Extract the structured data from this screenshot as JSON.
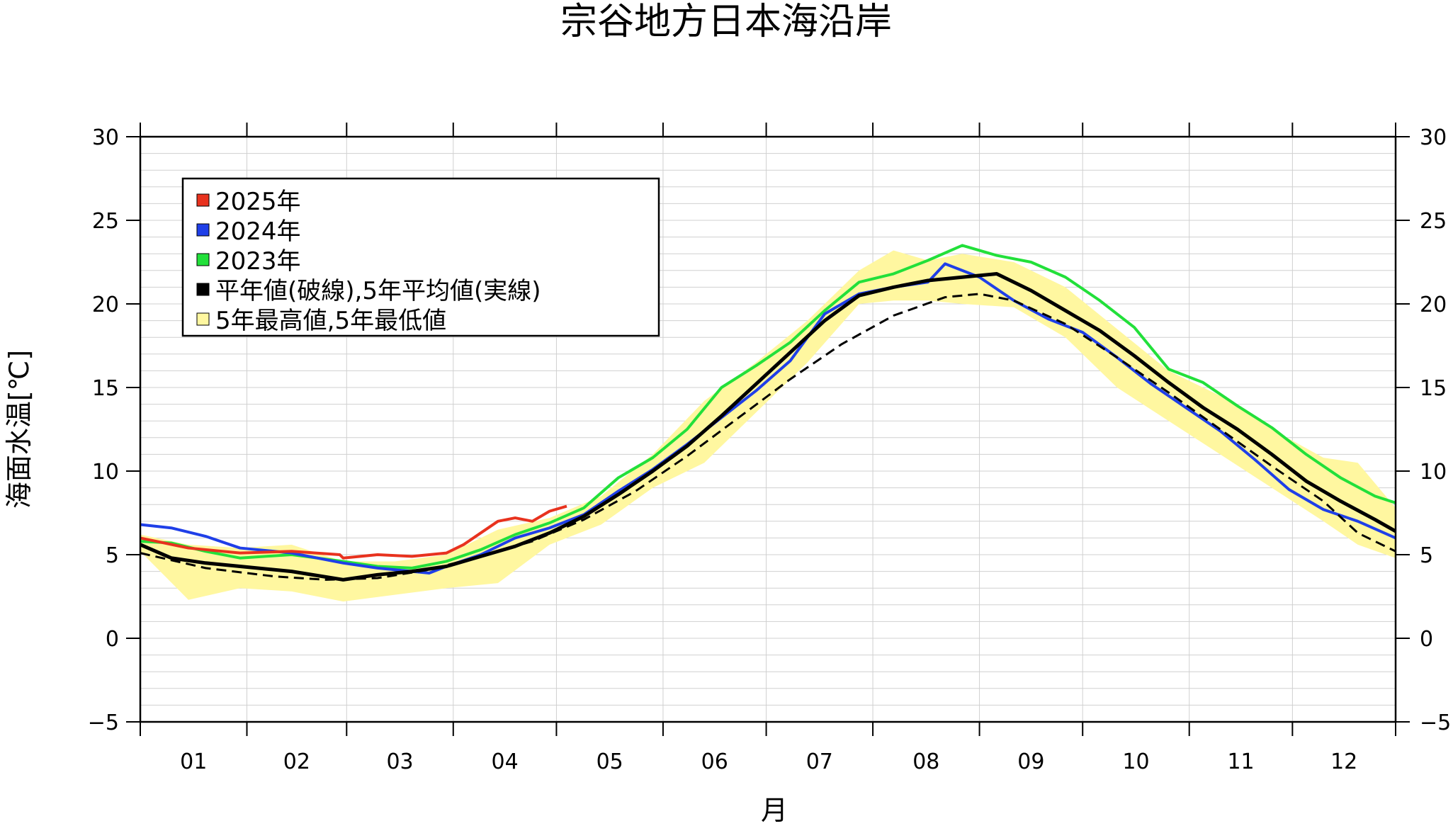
{
  "chart_data": {
    "type": "line",
    "title": "宗谷地方日本海沿岸",
    "xlabel": "月",
    "ylabel": "海面水温[℃]",
    "x_unit": "day_of_year",
    "xlim": [
      1,
      366
    ],
    "ylim": [
      -5,
      30
    ],
    "y_ticks": [
      30,
      25,
      20,
      15,
      10,
      5,
      0,
      -5
    ],
    "y_tick_labels": [
      "30",
      "25",
      "20",
      "15",
      "10",
      "5",
      "0",
      "−5"
    ],
    "month_labels": [
      "01",
      "02",
      "03",
      "04",
      "05",
      "06",
      "07",
      "08",
      "09",
      "10",
      "11",
      "12"
    ],
    "grid": true,
    "legend_position": "top-left",
    "legend": [
      {
        "label": "2025年",
        "color": "#e8321e"
      },
      {
        "label": "2024年",
        "color": "#1f3fe8"
      },
      {
        "label": "2023年",
        "color": "#22e03a"
      },
      {
        "label": "平年値(破線),5年平均値(実線)",
        "color": "#000000"
      },
      {
        "label": "5年最高値,5年最低値",
        "color": "#fff7a0"
      }
    ],
    "series": [
      {
        "name": "2025年",
        "color": "#e8321e",
        "x": [
          1,
          15,
          30,
          45,
          59,
          60,
          70,
          80,
          90,
          95,
          100,
          105,
          110,
          115,
          120,
          125
        ],
        "y": [
          6.0,
          5.4,
          5.1,
          5.2,
          5.0,
          4.8,
          5.0,
          4.9,
          5.1,
          5.6,
          6.3,
          7.0,
          7.2,
          7.0,
          7.6,
          7.9
        ]
      },
      {
        "name": "2024年",
        "color": "#1f3fe8",
        "x": [
          1,
          10,
          20,
          30,
          45,
          60,
          70,
          80,
          85,
          90,
          100,
          110,
          120,
          130,
          140,
          150,
          160,
          170,
          180,
          190,
          200,
          210,
          220,
          230,
          235,
          245,
          255,
          265,
          275,
          285,
          295,
          305,
          315,
          325,
          335,
          345,
          355,
          366
        ],
        "y": [
          6.8,
          6.6,
          6.1,
          5.4,
          5.1,
          4.5,
          4.2,
          4.0,
          3.9,
          4.3,
          5.0,
          6.0,
          6.6,
          7.4,
          8.8,
          10.1,
          11.6,
          13.2,
          14.8,
          16.6,
          19.4,
          20.6,
          21.0,
          21.3,
          22.4,
          21.6,
          20.2,
          19.1,
          18.3,
          16.8,
          15.2,
          13.8,
          12.4,
          10.7,
          8.9,
          7.7,
          7.0,
          6.0
        ]
      },
      {
        "name": "2023年",
        "color": "#22e03a",
        "x": [
          1,
          10,
          20,
          30,
          45,
          60,
          70,
          80,
          90,
          100,
          110,
          120,
          130,
          140,
          150,
          160,
          170,
          180,
          190,
          200,
          210,
          220,
          230,
          240,
          250,
          260,
          270,
          280,
          290,
          300,
          310,
          320,
          330,
          340,
          350,
          360,
          366
        ],
        "y": [
          5.8,
          5.7,
          5.2,
          4.8,
          5.0,
          4.6,
          4.3,
          4.2,
          4.6,
          5.3,
          6.2,
          6.9,
          7.8,
          9.6,
          10.8,
          12.5,
          15.0,
          16.3,
          17.7,
          19.6,
          21.3,
          21.8,
          22.6,
          23.5,
          22.9,
          22.5,
          21.6,
          20.2,
          18.6,
          16.1,
          15.3,
          13.9,
          12.6,
          11.0,
          9.6,
          8.5,
          8.1
        ]
      },
      {
        "name": "5年平均値",
        "color": "#000000",
        "style": "solid",
        "x": [
          1,
          10,
          20,
          30,
          45,
          60,
          70,
          80,
          90,
          100,
          110,
          120,
          130,
          140,
          150,
          160,
          170,
          180,
          190,
          200,
          210,
          220,
          230,
          240,
          250,
          260,
          270,
          280,
          290,
          300,
          310,
          320,
          330,
          340,
          350,
          360,
          366
        ],
        "y": [
          5.6,
          4.8,
          4.5,
          4.3,
          4.0,
          3.5,
          3.8,
          4.0,
          4.3,
          4.9,
          5.5,
          6.3,
          7.3,
          8.6,
          10.0,
          11.5,
          13.3,
          15.2,
          17.1,
          19.0,
          20.5,
          21.0,
          21.4,
          21.6,
          21.8,
          20.8,
          19.6,
          18.4,
          16.9,
          15.3,
          13.8,
          12.5,
          11.0,
          9.4,
          8.2,
          7.1,
          6.4
        ]
      },
      {
        "name": "平年値",
        "color": "#000000",
        "style": "dashed",
        "x": [
          1,
          20,
          40,
          55,
          70,
          85,
          100,
          115,
          130,
          145,
          160,
          175,
          190,
          205,
          220,
          235,
          245,
          255,
          270,
          285,
          300,
          315,
          330,
          345,
          355,
          366
        ],
        "y": [
          5.1,
          4.2,
          3.7,
          3.5,
          3.6,
          4.1,
          4.9,
          5.8,
          7.1,
          8.8,
          10.9,
          13.2,
          15.5,
          17.6,
          19.3,
          20.4,
          20.6,
          20.2,
          18.8,
          16.8,
          14.7,
          12.5,
          10.3,
          8.2,
          6.3,
          5.2
        ]
      }
    ],
    "band": {
      "name": "5年最高値,5年最低値",
      "color": "#fff7a0",
      "x": [
        1,
        15,
        30,
        45,
        60,
        75,
        90,
        105,
        120,
        135,
        150,
        165,
        180,
        195,
        210,
        220,
        230,
        240,
        255,
        270,
        285,
        300,
        315,
        330,
        345,
        355,
        366
      ],
      "upper": [
        6.2,
        5.6,
        5.4,
        5.6,
        4.6,
        4.6,
        5.0,
        6.5,
        7.2,
        8.5,
        11.0,
        14.2,
        16.5,
        19.0,
        22.0,
        23.2,
        22.6,
        23.0,
        22.5,
        21.0,
        18.5,
        16.0,
        14.5,
        12.5,
        10.8,
        10.5,
        7.8
      ],
      "lower": [
        5.2,
        2.3,
        3.0,
        2.8,
        2.2,
        2.6,
        3.0,
        3.3,
        5.6,
        6.8,
        9.0,
        10.5,
        13.5,
        16.5,
        20.0,
        20.2,
        20.2,
        20.0,
        19.8,
        18.0,
        15.0,
        13.0,
        11.0,
        9.0,
        7.0,
        5.6,
        4.8
      ]
    }
  }
}
